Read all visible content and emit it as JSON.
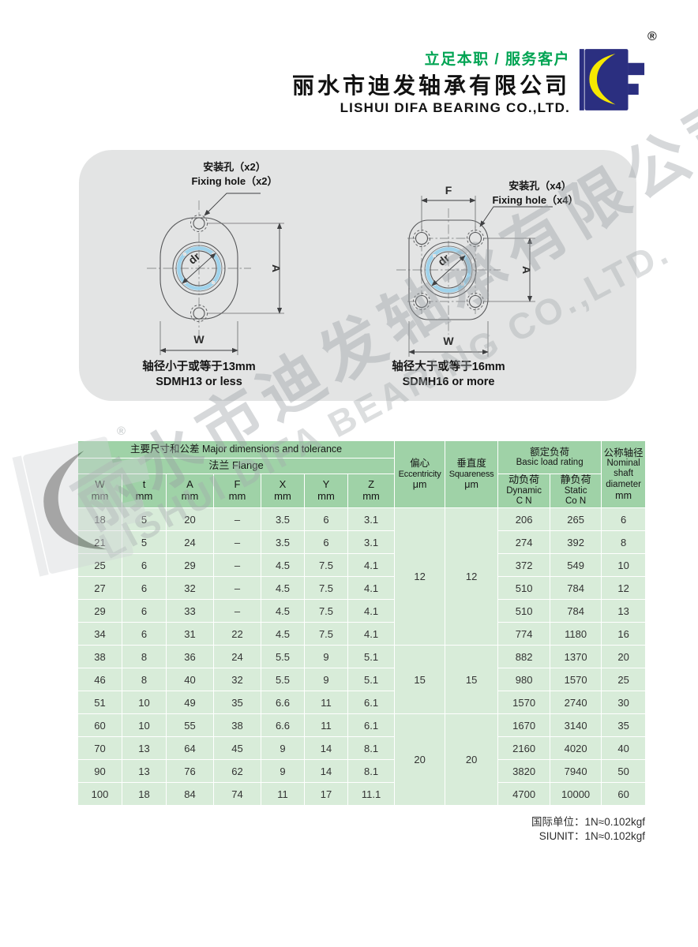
{
  "header": {
    "slogan": "立足本职 / 服务客户",
    "company_cn": "丽水市迪发轴承有限公司",
    "company_en": "LISHUI DIFA BEARING CO.,LTD.",
    "registered": "®",
    "colors": {
      "slogan_green": "#00a453",
      "logo_navy": "#2b2f80",
      "logo_yellow": "#f6e800"
    }
  },
  "diagrams": {
    "panel_bg": "#e3e4e4",
    "bore_ring_blue": "#9fd3ec",
    "left": {
      "callout_line1": "安装孔（x2）",
      "callout_line2": "Fixing hole（x2）",
      "dim_a": "A",
      "dim_w": "W",
      "bore_label": "dr",
      "caption_line1": "轴径小于或等于13mm",
      "caption_line2": "SDMH13 or less"
    },
    "right": {
      "callout_line1": "安装孔（x4）",
      "callout_line2": "Fixing hole（x4）",
      "dim_a": "A",
      "dim_w": "W",
      "dim_f": "F",
      "bore_label": "dr",
      "caption_line1": "轴径大于或等于16mm",
      "caption_line2": "SDMH16 or more"
    }
  },
  "watermark": {
    "text_cn": "丽水市迪发轴承有限公司",
    "text_en": "LISHUI DIFA BEARING CO.,LTD.",
    "registered": "®"
  },
  "table": {
    "colors": {
      "header_bg": "#9fd2a7",
      "body_bg": "#d8ecd9",
      "grid": "#ffffff"
    },
    "header": {
      "main_group": "主要尺寸和公差 Major dimensions and tolerance",
      "flange_group": "法兰 Flange",
      "dim_cols": [
        {
          "label": "W",
          "unit": "mm"
        },
        {
          "label": "t",
          "unit": "mm"
        },
        {
          "label": "A",
          "unit": "mm"
        },
        {
          "label": "F",
          "unit": "mm"
        },
        {
          "label": "X",
          "unit": "mm"
        },
        {
          "label": "Y",
          "unit": "mm"
        },
        {
          "label": "Z",
          "unit": "mm"
        }
      ],
      "eccentricity": {
        "cn": "偏心",
        "en": "Eccentricity",
        "unit": "μm"
      },
      "squareness": {
        "cn": "垂直度",
        "en": "Squareness",
        "unit": "μm"
      },
      "load_group": {
        "cn": "额定负荷",
        "en": "Basic load rating"
      },
      "dynamic": {
        "cn": "动负荷",
        "en": "Dynamic",
        "unit": "C N"
      },
      "static": {
        "cn": "静负荷",
        "en": "Static",
        "unit": "Co N"
      },
      "nominal": {
        "cn": "公称轴径",
        "en": "Nominal shaft diameter",
        "unit": "mm"
      }
    },
    "rows": [
      {
        "w": "18",
        "t": "5",
        "a": "20",
        "f": "–",
        "x": "3.5",
        "y": "6",
        "z": "3.1",
        "dynamic": "206",
        "static": "265",
        "diameter": "6"
      },
      {
        "w": "21",
        "t": "5",
        "a": "24",
        "f": "–",
        "x": "3.5",
        "y": "6",
        "z": "3.1",
        "dynamic": "274",
        "static": "392",
        "diameter": "8"
      },
      {
        "w": "25",
        "t": "6",
        "a": "29",
        "f": "–",
        "x": "4.5",
        "y": "7.5",
        "z": "4.1",
        "dynamic": "372",
        "static": "549",
        "diameter": "10"
      },
      {
        "w": "27",
        "t": "6",
        "a": "32",
        "f": "–",
        "x": "4.5",
        "y": "7.5",
        "z": "4.1",
        "dynamic": "510",
        "static": "784",
        "diameter": "12"
      },
      {
        "w": "29",
        "t": "6",
        "a": "33",
        "f": "–",
        "x": "4.5",
        "y": "7.5",
        "z": "4.1",
        "dynamic": "510",
        "static": "784",
        "diameter": "13"
      },
      {
        "w": "34",
        "t": "6",
        "a": "31",
        "f": "22",
        "x": "4.5",
        "y": "7.5",
        "z": "4.1",
        "dynamic": "774",
        "static": "1180",
        "diameter": "16"
      },
      {
        "w": "38",
        "t": "8",
        "a": "36",
        "f": "24",
        "x": "5.5",
        "y": "9",
        "z": "5.1",
        "dynamic": "882",
        "static": "1370",
        "diameter": "20"
      },
      {
        "w": "46",
        "t": "8",
        "a": "40",
        "f": "32",
        "x": "5.5",
        "y": "9",
        "z": "5.1",
        "dynamic": "980",
        "static": "1570",
        "diameter": "25"
      },
      {
        "w": "51",
        "t": "10",
        "a": "49",
        "f": "35",
        "x": "6.6",
        "y": "11",
        "z": "6.1",
        "dynamic": "1570",
        "static": "2740",
        "diameter": "30"
      },
      {
        "w": "60",
        "t": "10",
        "a": "55",
        "f": "38",
        "x": "6.6",
        "y": "11",
        "z": "6.1",
        "dynamic": "1670",
        "static": "3140",
        "diameter": "35"
      },
      {
        "w": "70",
        "t": "13",
        "a": "64",
        "f": "45",
        "x": "9",
        "y": "14",
        "z": "8.1",
        "dynamic": "2160",
        "static": "4020",
        "diameter": "40"
      },
      {
        "w": "90",
        "t": "13",
        "a": "76",
        "f": "62",
        "x": "9",
        "y": "14",
        "z": "8.1",
        "dynamic": "3820",
        "static": "7940",
        "diameter": "50"
      },
      {
        "w": "100",
        "t": "18",
        "a": "84",
        "f": "74",
        "x": "11",
        "y": "17",
        "z": "11.1",
        "dynamic": "4700",
        "static": "10000",
        "diameter": "60"
      }
    ],
    "eccentricity_groups": [
      {
        "rows": 6,
        "eccentricity": "12",
        "squareness": "12"
      },
      {
        "rows": 3,
        "eccentricity": "15",
        "squareness": "15"
      },
      {
        "rows": 4,
        "eccentricity": "20",
        "squareness": "20"
      }
    ]
  },
  "footer": {
    "line1": "国际单位：1N≈0.102kgf",
    "line2": "SIUNIT：1N≈0.102kgf"
  }
}
